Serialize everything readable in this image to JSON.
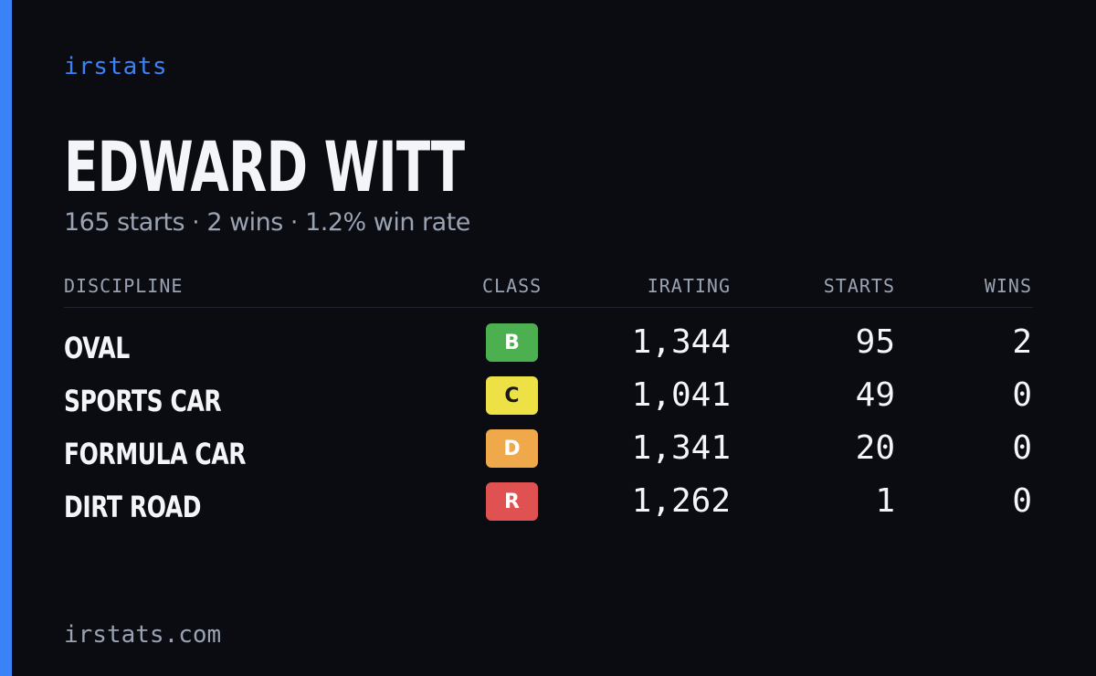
{
  "brand": "irstats",
  "driver": {
    "name": "EDWARD WITT",
    "summary": "165 starts · 2 wins · 1.2% win rate"
  },
  "table": {
    "headers": {
      "discipline": "DISCIPLINE",
      "class": "CLASS",
      "irating": "IRATING",
      "starts": "STARTS",
      "wins": "WINS"
    },
    "rows": [
      {
        "discipline": "OVAL",
        "class": "B",
        "class_color": "#4caf50",
        "class_text_color": "#ffffff",
        "irating": "1,344",
        "starts": "95",
        "wins": "2"
      },
      {
        "discipline": "SPORTS CAR",
        "class": "C",
        "class_color": "#eee146",
        "class_text_color": "#1a1a1a",
        "irating": "1,041",
        "starts": "49",
        "wins": "0"
      },
      {
        "discipline": "FORMULA CAR",
        "class": "D",
        "class_color": "#f0a94a",
        "class_text_color": "#ffffff",
        "irating": "1,341",
        "starts": "20",
        "wins": "0"
      },
      {
        "discipline": "DIRT ROAD",
        "class": "R",
        "class_color": "#e05151",
        "class_text_color": "#ffffff",
        "irating": "1,262",
        "starts": "1",
        "wins": "0"
      }
    ]
  },
  "footer": "irstats.com",
  "colors": {
    "accent": "#3b82f6",
    "background": "#0a0c12",
    "muted": "#9aa3b2"
  }
}
